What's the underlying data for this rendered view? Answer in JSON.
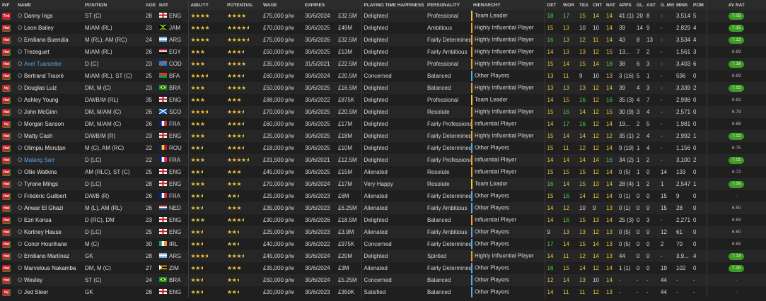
{
  "headers": {
    "inf": "INF",
    "name": "NAME",
    "position": "POSITION",
    "age": "AGE",
    "nat": "NAT",
    "ability": "ABILITY",
    "potential": "POTENTIAL",
    "wage": "WAGE",
    "expires": "EXPIRES",
    "value": "",
    "happiness": "PLAYING TIME HAPPINESS",
    "personality": "PERSONALITY",
    "hierarchy": "HIERARCHY",
    "det": "DET",
    "wor": "WOR",
    "tea": "TEA",
    "cnt": "CNT",
    "natr": "NAT",
    "apps": "APPS",
    "gls": "GL...",
    "ast": "AST",
    "gmis": "G. MIS",
    "mins": "MINS",
    "pom": "POM",
    "avrat": "AV RAT"
  },
  "colors": {
    "bar_leader": "#e8c83a",
    "bar_influential": "#e8a33a",
    "bar_other": "#5aa6e8",
    "green": "#4fd04f",
    "yellow": "#e8c83a",
    "badge_red": "#c0252c",
    "rating_green": "#3e9b23"
  },
  "players": [
    {
      "inf": "Tml",
      "name": "Danny Ings",
      "name_style": "w",
      "pos": "ST (C)",
      "age": "28",
      "nat": "ENG",
      "ab": 4,
      "pot": 4,
      "wage": "£75,000 p/w",
      "exp": "30/6/2024",
      "val": "£32.5M",
      "hap": "Delighted",
      "pers": "Professional",
      "hier": "Team Leader",
      "hc": "leader",
      "det": "18",
      "wor": "17",
      "tea": "15",
      "cnt": "14",
      "natr": "14",
      "apps": "41 (1)",
      "gls": "20",
      "ast": "8",
      "gmis": "-",
      "mins": "3,514",
      "pom": "5",
      "rat": "7.05",
      "rg": true
    },
    {
      "inf": "Hot",
      "name": "Leon Bailey",
      "name_style": "w",
      "pos": "M/AM (RL)",
      "age": "23",
      "nat": "JAM",
      "ab": 4,
      "pot": 4.5,
      "wage": "£70,000 p/w",
      "exp": "30/6/2025",
      "val": "£49M",
      "hap": "Delighted",
      "pers": "Ambitious",
      "hier": "Highly Influential Player",
      "hc": "influential",
      "det": "15",
      "wor": "13",
      "tea": "10",
      "cnt": "10",
      "natr": "14",
      "apps": "39",
      "gls": "14",
      "ast": "9",
      "gmis": "-",
      "mins": "2,829",
      "pom": "4",
      "rat": "7.15",
      "rg": true
    },
    {
      "inf": "Hot",
      "name": "Emiliano Buendía",
      "name_style": "w",
      "pos": "M (RL), AM (RC)",
      "age": "24",
      "nat": "ARG",
      "ab": 4,
      "pot": 4.5,
      "wage": "£75,000 p/w",
      "exp": "30/6/2026",
      "val": "£32.5M",
      "hap": "Delighted",
      "pers": "Fairly Determined",
      "hier": "Highly Influential Player",
      "hc": "influential",
      "det": "16",
      "wor": "13",
      "tea": "12",
      "cnt": "11",
      "natr": "14",
      "apps": "43",
      "gls": "8",
      "ast": "13",
      "gmis": "-",
      "mins": "3,534",
      "pom": "4",
      "rat": "7.12",
      "rg": true
    },
    {
      "inf": "Hot",
      "name": "Trezeguet",
      "name_style": "w",
      "pos": "M/AM (RL)",
      "age": "26",
      "nat": "EGY",
      "ab": 3,
      "pot": 3.5,
      "wage": "£50,000 p/w",
      "exp": "30/6/2025",
      "val": "£13M",
      "hap": "Delighted",
      "pers": "Fairly Ambitious",
      "hier": "Highly Influential Player",
      "hc": "influential",
      "det": "14",
      "wor": "13",
      "tea": "13",
      "cnt": "12",
      "natr": "15",
      "apps": "13...",
      "gls": "7",
      "ast": "2",
      "gmis": "-",
      "mins": "1,561",
      "pom": "3",
      "rat": "6.89",
      "rg": false
    },
    {
      "inf": "Hot",
      "name": "Axel Tuanzebe",
      "name_style": "b",
      "pos": "D (C)",
      "age": "23",
      "nat": "COD",
      "ab": 3,
      "pot": 4,
      "wage": "£35,000 p/w",
      "exp": "31/5/2021",
      "val": "£22.5M",
      "hap": "Delighted",
      "pers": "Professional",
      "hier": "Highly Influential Player",
      "hc": "influential",
      "det": "15",
      "wor": "14",
      "tea": "15",
      "cnt": "14",
      "natr": "18",
      "apps": "38",
      "gls": "6",
      "ast": "3",
      "gmis": "-",
      "mins": "3,403",
      "pom": "6",
      "rat": "7.16",
      "rg": true
    },
    {
      "inf": "Hot",
      "name": "Bertrand Traoré",
      "name_style": "w",
      "pos": "M/AM (RL), ST (C)",
      "age": "25",
      "nat": "BFA",
      "ab": 3.5,
      "pot": 3.5,
      "wage": "£60,000 p/w",
      "exp": "30/6/2024",
      "val": "£20.5M",
      "hap": "Concerned",
      "pers": "Balanced",
      "hier": "Other Players",
      "hc": "other",
      "det": "13",
      "wor": "11",
      "tea": "9",
      "cnt": "10",
      "natr": "13",
      "apps": "3 (16)",
      "gls": "5",
      "ast": "1",
      "gmis": "-",
      "mins": "596",
      "pom": "0",
      "rat": "6.89",
      "rg": false
    },
    {
      "inf": "Inj",
      "name": "Douglas Luiz",
      "name_style": "w",
      "pos": "DM, M (C)",
      "age": "23",
      "nat": "BRA",
      "ab": 3,
      "pot": 4,
      "wage": "£50,000 p/w",
      "exp": "30/6/2025",
      "val": "£16.5M",
      "hap": "Delighted",
      "pers": "Balanced",
      "hier": "Highly Influential Player",
      "hc": "influential",
      "det": "13",
      "wor": "13",
      "tea": "13",
      "cnt": "12",
      "natr": "14",
      "apps": "39",
      "gls": "4",
      "ast": "3",
      "gmis": "-",
      "mins": "3,339",
      "pom": "2",
      "rat": "7.02",
      "rg": true
    },
    {
      "inf": "Hot",
      "name": "Ashley Young",
      "name_style": "w",
      "pos": "D/WB/M (RL)",
      "age": "35",
      "nat": "ENG",
      "ab": 3,
      "pot": 3,
      "wage": "£88,000 p/w",
      "exp": "30/6/2022",
      "val": "£875K",
      "hap": "Delighted",
      "pers": "Professional",
      "hier": "Team Leader",
      "hc": "leader",
      "det": "14",
      "wor": "15",
      "tea": "16",
      "cnt": "12",
      "natr": "16",
      "apps": "35 (3)",
      "gls": "4",
      "ast": "7",
      "gmis": "-",
      "mins": "2,998",
      "pom": "0",
      "rat": "6.83",
      "rg": false
    },
    {
      "inf": "Hot",
      "name": "John McGinn",
      "name_style": "w",
      "pos": "DM, M/AM (C)",
      "age": "26",
      "nat": "SCO",
      "ab": 3.5,
      "pot": 3.5,
      "wage": "£70,000 p/w",
      "exp": "30/6/2025",
      "val": "£20.5M",
      "hap": "Delighted",
      "pers": "Resolute",
      "hier": "Highly Influential Player",
      "hc": "influential",
      "det": "15",
      "wor": "16",
      "tea": "14",
      "cnt": "12",
      "natr": "15",
      "apps": "30 (9)",
      "gls": "3",
      "ast": "4",
      "gmis": "-",
      "mins": "2,571",
      "pom": "0",
      "rat": "6.79",
      "rg": false
    },
    {
      "inf": "Inj",
      "name": "Morgan Sanson",
      "name_style": "w",
      "pos": "DM, M/AM (C)",
      "age": "26",
      "nat": "FRA",
      "ab": 3,
      "pot": 3.5,
      "wage": "£60,000 p/w",
      "exp": "30/6/2025",
      "val": "£17M",
      "hap": "Delighted",
      "pers": "Fairly Professional",
      "hier": "Influential Player",
      "hc": "influential",
      "det": "14",
      "wor": "17",
      "tea": "16",
      "cnt": "12",
      "natr": "14",
      "apps": "19...",
      "gls": "2",
      "ast": "5",
      "gmis": "-",
      "mins": "1,981",
      "pom": "0",
      "rat": "6.88",
      "rg": false
    },
    {
      "inf": "Hot",
      "name": "Matty Cash",
      "name_style": "w",
      "pos": "D/WB/M (R)",
      "age": "23",
      "nat": "ENG",
      "ab": 3,
      "pot": 3.5,
      "wage": "£25,000 p/w",
      "exp": "30/6/2025",
      "val": "£18M",
      "hap": "Delighted",
      "pers": "Fairly Determined",
      "hier": "Highly Influential Player",
      "hc": "influential",
      "det": "15",
      "wor": "14",
      "tea": "14",
      "cnt": "12",
      "natr": "12",
      "apps": "35 (1)",
      "gls": "2",
      "ast": "4",
      "gmis": "-",
      "mins": "2,992",
      "pom": "1",
      "rat": "7.02",
      "rg": true
    },
    {
      "inf": "Hot",
      "name": "Olimpiu Moruțan",
      "name_style": "w",
      "pos": "M (C), AM (RC)",
      "age": "22",
      "nat": "ROU",
      "ab": 2.5,
      "pot": 3.5,
      "wage": "£18,000 p/w",
      "exp": "30/6/2025",
      "val": "£10M",
      "hap": "Delighted",
      "pers": "Fairly Determined",
      "hier": "Other Players",
      "hc": "other",
      "det": "15",
      "wor": "11",
      "tea": "12",
      "cnt": "12",
      "natr": "14",
      "apps": "9 (19)",
      "gls": "1",
      "ast": "4",
      "gmis": "-",
      "mins": "1,156",
      "pom": "0",
      "rat": "6.75",
      "rg": false
    },
    {
      "inf": "Hot",
      "name": "Malang Sarr",
      "name_style": "b",
      "pos": "D (LC)",
      "age": "22",
      "nat": "FRA",
      "ab": 3,
      "pot": 4.5,
      "wage": "£31,500 p/w",
      "exp": "30/6/2021",
      "val": "£12.5M",
      "hap": "Delighted",
      "pers": "Fairly Professional",
      "hier": "Influential Player",
      "hc": "influential",
      "det": "14",
      "wor": "14",
      "tea": "14",
      "cnt": "14",
      "natr": "16",
      "apps": "34 (2)",
      "gls": "1",
      "ast": "2",
      "gmis": "-",
      "mins": "3,100",
      "pom": "2",
      "rat": "7.01",
      "rg": true
    },
    {
      "inf": "Hot",
      "name": "Ollie Watkins",
      "name_style": "w",
      "pos": "AM (RLC), ST (C)",
      "age": "25",
      "nat": "ENG",
      "ab": 2.5,
      "pot": 3,
      "wage": "£45,000 p/w",
      "exp": "30/6/2025",
      "val": "£15M",
      "hap": "Alienated",
      "pers": "Resolute",
      "hier": "Influential Player",
      "hc": "influential",
      "det": "15",
      "wor": "15",
      "tea": "15",
      "cnt": "12",
      "natr": "14",
      "apps": "0 (5)",
      "gls": "1",
      "ast": "0",
      "gmis": "14",
      "mins": "133",
      "pom": "0",
      "rat": "6.72",
      "rg": false
    },
    {
      "inf": "Hot",
      "name": "Tyrone Mings",
      "name_style": "w",
      "pos": "D (LC)",
      "age": "28",
      "nat": "ENG",
      "ab": 3,
      "pot": 3,
      "wage": "£70,000 p/w",
      "exp": "30/6/2024",
      "val": "£17M",
      "hap": "Very Happy",
      "pers": "Resolute",
      "hier": "Team Leader",
      "hc": "leader",
      "det": "16",
      "wor": "14",
      "tea": "15",
      "cnt": "13",
      "natr": "14",
      "apps": "28 (4)",
      "gls": "1",
      "ast": "2",
      "gmis": "1",
      "mins": "2,547",
      "pom": "1",
      "rat": "7.05",
      "rg": true
    },
    {
      "inf": "Hot",
      "name": "Frédéric Guilbert",
      "name_style": "w",
      "pos": "D/WB (R)",
      "age": "26",
      "nat": "FRA",
      "ab": 2.5,
      "pot": 2.5,
      "wage": "£25,000 p/w",
      "exp": "30/6/2023",
      "val": "£6M",
      "hap": "Alienated",
      "pers": "Fairly Determined",
      "hier": "Other Players",
      "hc": "other",
      "det": "15",
      "wor": "16",
      "tea": "14",
      "cnt": "12",
      "natr": "14",
      "apps": "0 (1)",
      "gls": "0",
      "ast": "0",
      "gmis": "15",
      "mins": "9",
      "pom": "0",
      "rat": "-",
      "rg": false
    },
    {
      "inf": "Hot",
      "name": "Anwar El Ghazi",
      "name_style": "w",
      "pos": "M (L), AM (RL)",
      "age": "26",
      "nat": "NED",
      "ab": 2.5,
      "pot": 3,
      "wage": "£35,000 p/w",
      "exp": "30/6/2023",
      "val": "£6.25M",
      "hap": "Alienated",
      "pers": "Fairly Ambitious",
      "hier": "Other Players",
      "hc": "other",
      "det": "14",
      "wor": "12",
      "tea": "10",
      "cnt": "9",
      "natr": "13",
      "apps": "0 (1)",
      "gls": "0",
      "ast": "0",
      "gmis": "15",
      "mins": "28",
      "pom": "0",
      "rat": "6.50",
      "rg": false
    },
    {
      "inf": "Hot",
      "name": "Ezri Konsa",
      "name_style": "w",
      "pos": "D (RC), DM",
      "age": "23",
      "nat": "ENG",
      "ab": 3,
      "pot": 3.5,
      "wage": "£30,000 p/w",
      "exp": "30/6/2026",
      "val": "£18.5M",
      "hap": "Delighted",
      "pers": "Balanced",
      "hier": "Influential Player",
      "hc": "influential",
      "det": "14",
      "wor": "16",
      "tea": "15",
      "cnt": "13",
      "natr": "14",
      "apps": "25 (3)",
      "gls": "0",
      "ast": "3",
      "gmis": "-",
      "mins": "2,271",
      "pom": "0",
      "rat": "6.89",
      "rg": false
    },
    {
      "inf": "Hot",
      "name": "Kortney Hause",
      "name_style": "w",
      "pos": "D (LC)",
      "age": "25",
      "nat": "ENG",
      "ab": 2.5,
      "pot": 2.5,
      "wage": "£25,000 p/w",
      "exp": "30/6/2023",
      "val": "£3.9M",
      "hap": "Alienated",
      "pers": "Fairly Ambitious",
      "hier": "Other Players",
      "hc": "other",
      "det": "9",
      "wor": "13",
      "tea": "13",
      "cnt": "12",
      "natr": "13",
      "apps": "0 (5)",
      "gls": "0",
      "ast": "0",
      "gmis": "12",
      "mins": "61",
      "pom": "0",
      "rat": "6.60",
      "rg": false
    },
    {
      "inf": "Hot",
      "name": "Conor Hourihane",
      "name_style": "w",
      "pos": "M (C)",
      "age": "30",
      "nat": "IRL",
      "ab": 2.5,
      "pot": 2.5,
      "wage": "£40,000 p/w",
      "exp": "30/6/2022",
      "val": "£975K",
      "hap": "Concerned",
      "pers": "Fairly Determined",
      "hier": "Other Players",
      "hc": "other",
      "det": "17",
      "wor": "14",
      "tea": "15",
      "cnt": "14",
      "natr": "13",
      "apps": "0 (5)",
      "gls": "0",
      "ast": "0",
      "gmis": "2",
      "mins": "70",
      "pom": "0",
      "rat": "6.85",
      "rg": false
    },
    {
      "inf": "Hot",
      "name": "Emiliano Martínez",
      "name_style": "w",
      "pos": "GK",
      "age": "28",
      "nat": "ARG",
      "ab": 3.5,
      "pot": 3.5,
      "wage": "£45,000 p/w",
      "exp": "30/6/2024",
      "val": "£20M",
      "hap": "Delighted",
      "pers": "Spirited",
      "hier": "Highly Influential Player",
      "hc": "influential",
      "det": "14",
      "wor": "11",
      "tea": "12",
      "cnt": "14",
      "natr": "13",
      "apps": "44",
      "gls": "0",
      "ast": "0",
      "gmis": "-",
      "mins": "3,9...",
      "pom": "4",
      "rat": "7.14",
      "rg": true
    },
    {
      "inf": "Hot",
      "name": "Marvelous Nakamba",
      "name_style": "w",
      "pos": "DM, M (C)",
      "age": "27",
      "nat": "ZIM",
      "ab": 2.5,
      "pot": 3,
      "wage": "£35,000 p/w",
      "exp": "30/6/2024",
      "val": "£3M",
      "hap": "Alienated",
      "pers": "Fairly Determined",
      "hier": "Other Players",
      "hc": "other",
      "det": "16",
      "wor": "15",
      "tea": "14",
      "cnt": "12",
      "natr": "14",
      "apps": "1 (1)",
      "gls": "0",
      "ast": "0",
      "gmis": "19",
      "mins": "102",
      "pom": "0",
      "rat": "7.30",
      "rg": true
    },
    {
      "inf": "Hot",
      "name": "Wesley",
      "name_style": "w",
      "pos": "ST (C)",
      "age": "24",
      "nat": "BRA",
      "ab": 2.5,
      "pot": 2.5,
      "wage": "£50,000 p/w",
      "exp": "30/6/2024",
      "val": "£5.25M",
      "hap": "Concerned",
      "pers": "Balanced",
      "hier": "Other Players",
      "hc": "other",
      "det": "12",
      "wor": "14",
      "tea": "13",
      "cnt": "10",
      "natr": "14",
      "apps": "-",
      "gls": "-",
      "ast": "-",
      "gmis": "44",
      "mins": "-",
      "pom": "-",
      "rat": "-",
      "rg": false
    },
    {
      "inf": "Inj",
      "name": "Jed Steer",
      "name_style": "w",
      "pos": "GK",
      "age": "28",
      "nat": "ENG",
      "ab": 2.5,
      "pot": 2.5,
      "wage": "£20,000 p/w",
      "exp": "30/6/2023",
      "val": "£350K",
      "hap": "Satisfied",
      "pers": "Balanced",
      "hier": "Other Players",
      "hc": "other",
      "det": "14",
      "wor": "11",
      "tea": "11",
      "cnt": "12",
      "natr": "13",
      "apps": "-",
      "gls": "-",
      "ast": "-",
      "gmis": "44",
      "mins": "-",
      "pom": "-",
      "rat": "-",
      "rg": false
    }
  ]
}
